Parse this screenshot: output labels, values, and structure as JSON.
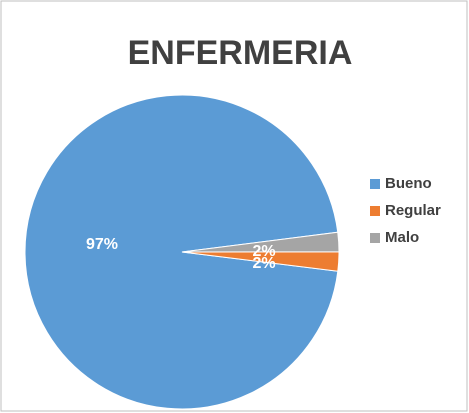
{
  "chart_data": {
    "type": "pie",
    "title": "ENFERMERIA",
    "categories": [
      "Bueno",
      "Regular",
      "Malo"
    ],
    "values": [
      97,
      2,
      2
    ],
    "value_labels": [
      "97%",
      "2%",
      "2%"
    ],
    "colors": [
      "#5b9bd5",
      "#ed7d31",
      "#a5a5a5"
    ],
    "legend": "right"
  }
}
